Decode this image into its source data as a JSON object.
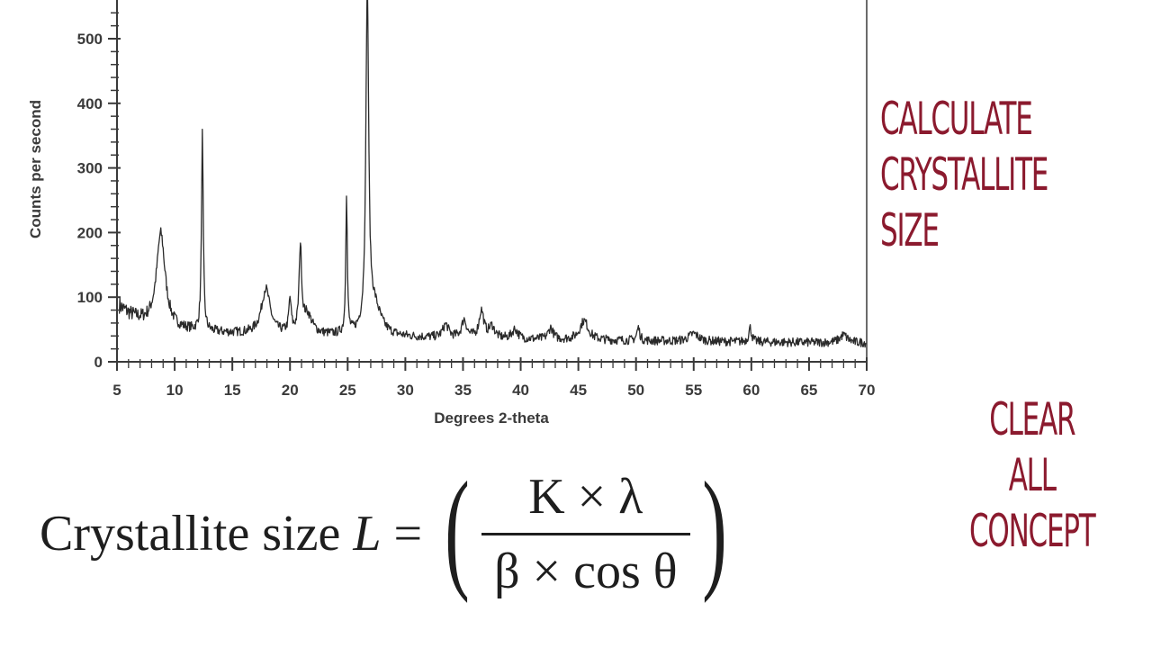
{
  "chart_data": {
    "type": "line",
    "title": "",
    "xlabel": "Degrees 2-theta",
    "ylabel": "Counts per second",
    "xlim": [
      5,
      70
    ],
    "ylim": [
      0,
      560
    ],
    "x_ticks": [
      5,
      10,
      15,
      20,
      25,
      30,
      35,
      40,
      45,
      50,
      55,
      60,
      65,
      70
    ],
    "y_ticks": [
      0,
      100,
      200,
      300,
      400,
      500
    ],
    "grid": false,
    "line_color": "#2a2a2a",
    "background": 30,
    "noise": 7,
    "seed": 7,
    "series": [
      {
        "peaks": [
          {
            "x": 8.8,
            "y": 145,
            "w": 0.45
          },
          {
            "x": 12.4,
            "y": 305,
            "w": 0.09
          },
          {
            "x": 17.9,
            "y": 70,
            "w": 0.45
          },
          {
            "x": 20.0,
            "y": 50,
            "w": 0.12
          },
          {
            "x": 20.9,
            "y": 130,
            "w": 0.13
          },
          {
            "x": 21.5,
            "y": 30,
            "w": 0.5
          },
          {
            "x": 24.9,
            "y": 215,
            "w": 0.08
          },
          {
            "x": 26.7,
            "y": 530,
            "w": 0.14
          },
          {
            "x": 27.3,
            "y": 45,
            "w": 0.7
          },
          {
            "x": 33.5,
            "y": 20,
            "w": 0.3
          },
          {
            "x": 35.1,
            "y": 28,
            "w": 0.25
          },
          {
            "x": 36.6,
            "y": 42,
            "w": 0.25
          },
          {
            "x": 37.5,
            "y": 18,
            "w": 0.3
          },
          {
            "x": 39.5,
            "y": 15,
            "w": 0.3
          },
          {
            "x": 42.6,
            "y": 18,
            "w": 0.25
          },
          {
            "x": 45.5,
            "y": 30,
            "w": 0.45
          },
          {
            "x": 50.2,
            "y": 20,
            "w": 0.15
          },
          {
            "x": 55.0,
            "y": 12,
            "w": 0.5
          },
          {
            "x": 59.9,
            "y": 22,
            "w": 0.15
          },
          {
            "x": 68.0,
            "y": 12,
            "w": 0.4
          }
        ]
      }
    ]
  },
  "headline": [
    "Calculate",
    "Crystallite",
    "size"
  ],
  "tagline": [
    "Clear",
    "all",
    "concept"
  ],
  "formula": {
    "lead": "Crystallite size ",
    "var": "L",
    "equals": " = ",
    "left_paren": "(",
    "numerator": "K × λ",
    "denominator": "β × cos θ",
    "right_paren": ")"
  },
  "colors": {
    "accent": "#8b1a2e",
    "ink": "#1e1e1e",
    "axis": "#3a3a3a"
  }
}
